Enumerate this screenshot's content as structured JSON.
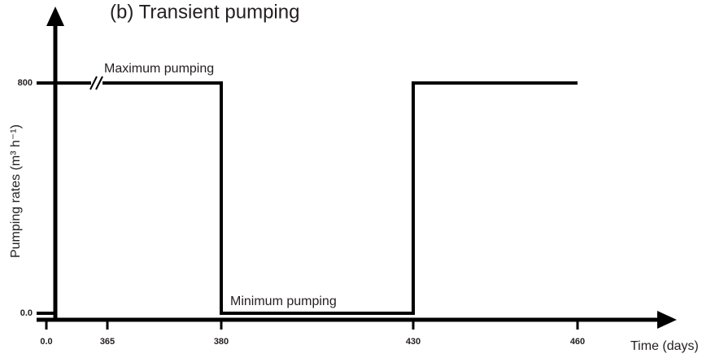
{
  "chart_data": {
    "type": "line",
    "title": "(b) Transient pumping",
    "x_label": "Time (days)",
    "y_label": "Pumping rates (m³ h⁻¹)",
    "x": [
      0,
      380,
      380,
      430,
      430,
      460
    ],
    "series": [
      {
        "name": "Pumping rate",
        "color": "#000000",
        "values": [
          800,
          800,
          0,
          0,
          800,
          800
        ]
      }
    ],
    "xticks": [
      {
        "value": 0,
        "label": "0.0"
      },
      365,
      380,
      430,
      460
    ],
    "ylim": [
      0,
      800
    ],
    "yticks": [
      {
        "value": 0,
        "label": "0.0"
      },
      800
    ],
    "annotations": [
      "Maximum pumping",
      "Minimum pumping"
    ]
  }
}
